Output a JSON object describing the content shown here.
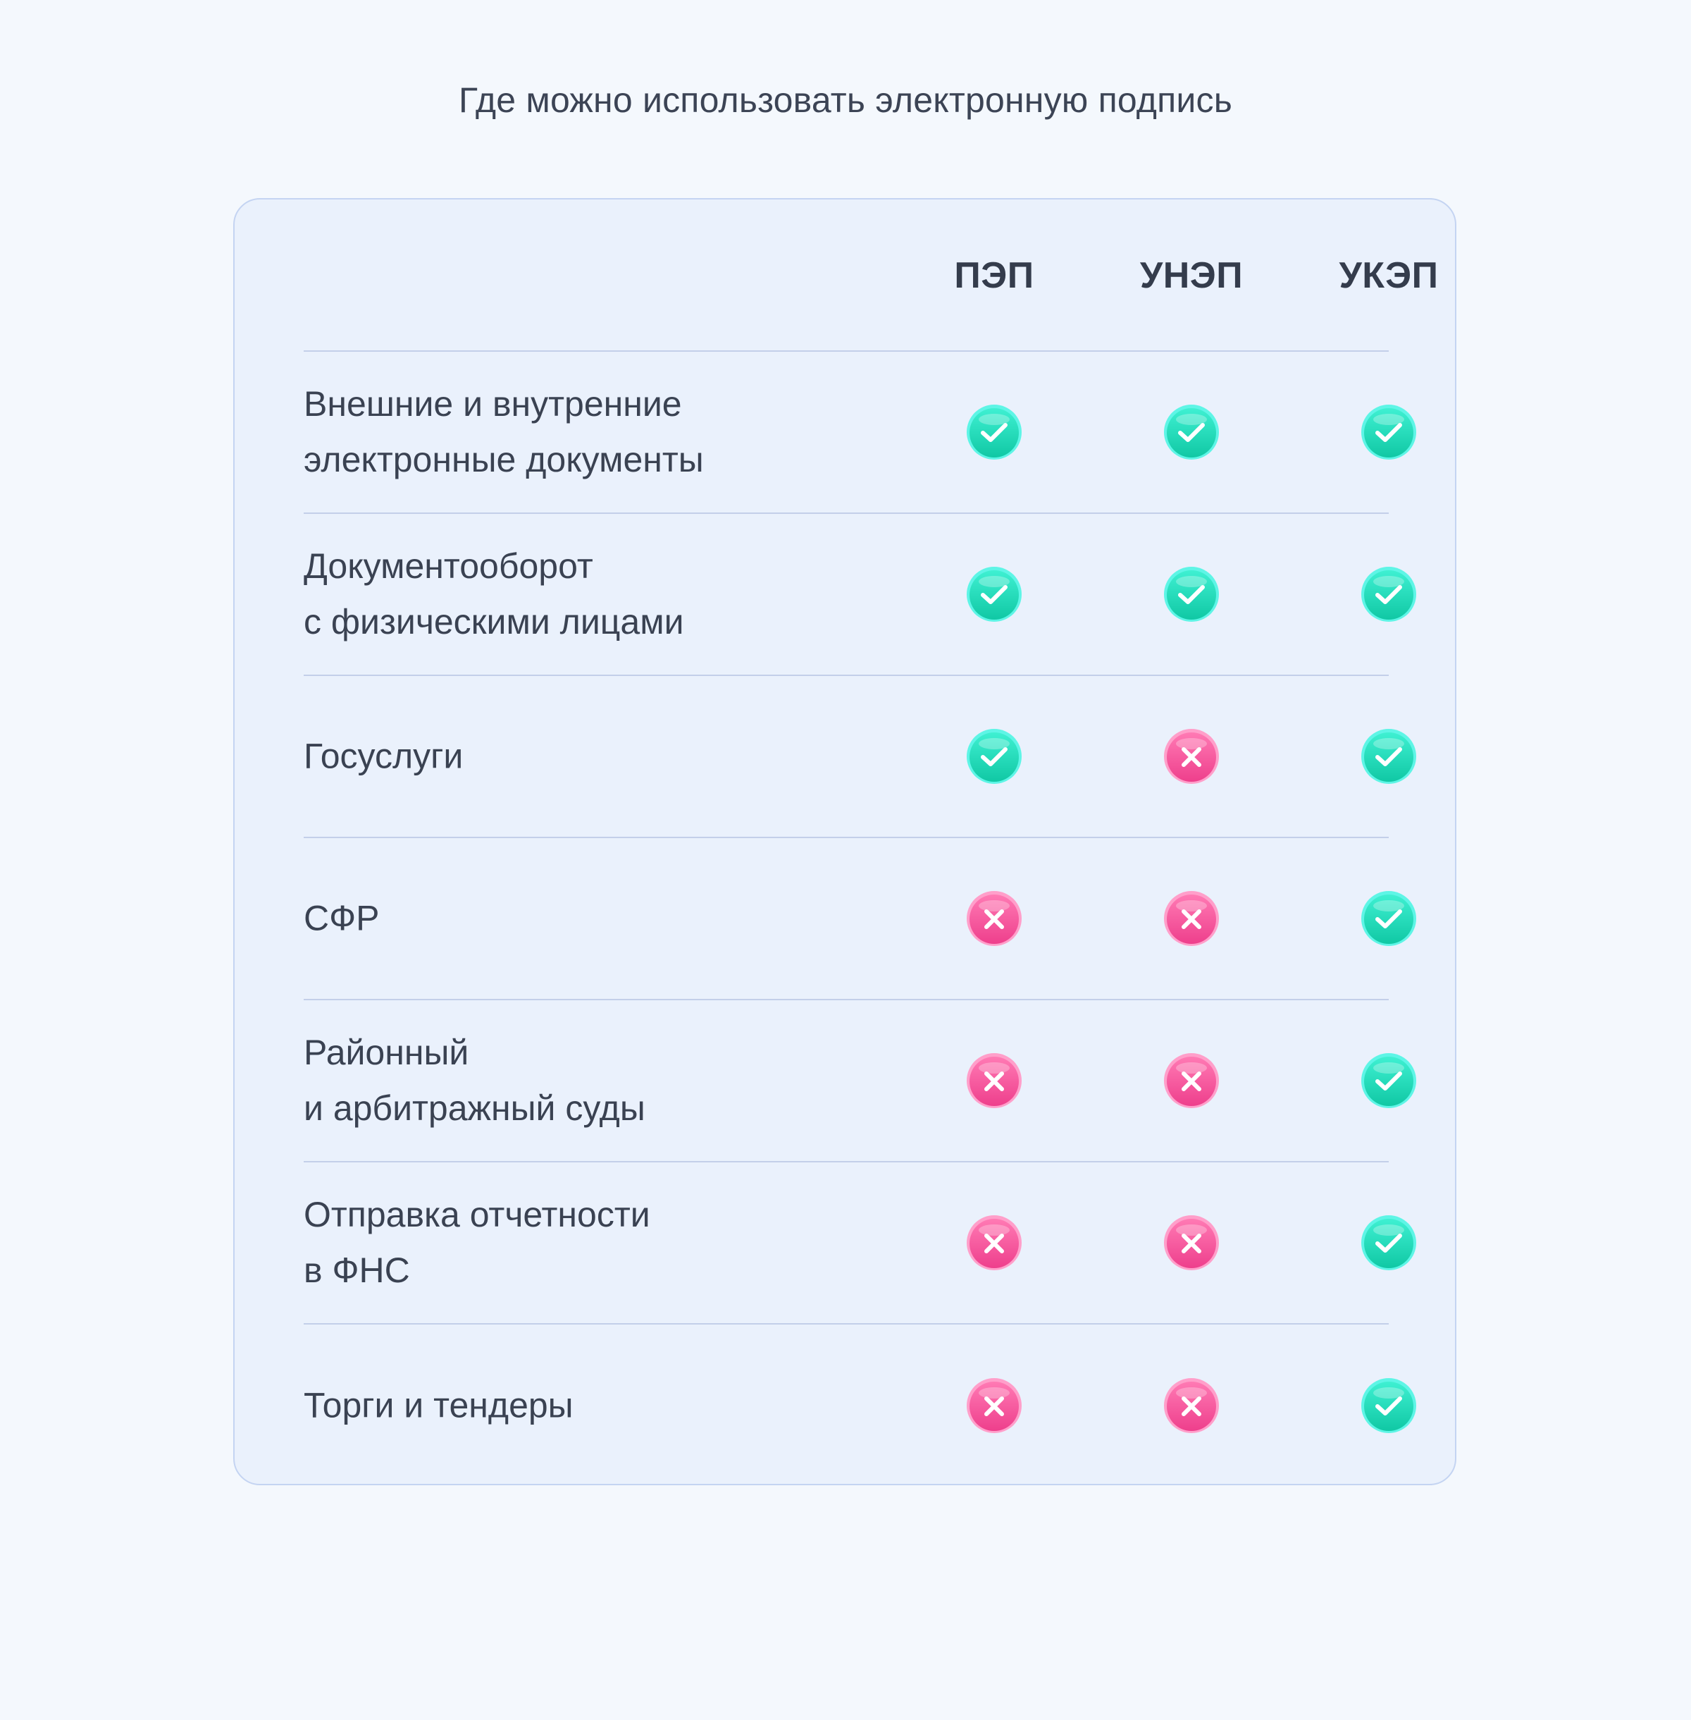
{
  "page": {
    "title": "Где можно использовать электронную подпись"
  },
  "table": {
    "columns": [
      "ПЭП",
      "УНЭП",
      "УКЭП"
    ],
    "rows": [
      {
        "label_lines": [
          "Внешние и внутренние",
          "электронные документы"
        ],
        "values": [
          "check",
          "check",
          "check"
        ]
      },
      {
        "label_lines": [
          "Документооборот",
          "с физическими лицами"
        ],
        "values": [
          "check",
          "check",
          "check"
        ]
      },
      {
        "label_lines": [
          "Госуслуги"
        ],
        "values": [
          "check",
          "cross",
          "check"
        ]
      },
      {
        "label_lines": [
          "СФР"
        ],
        "values": [
          "cross",
          "cross",
          "check"
        ]
      },
      {
        "label_lines": [
          "Районный",
          "и арбитражный суды"
        ],
        "values": [
          "cross",
          "cross",
          "check"
        ]
      },
      {
        "label_lines": [
          "Отправка отчетности",
          "в ФНС"
        ],
        "values": [
          "cross",
          "cross",
          "check"
        ]
      },
      {
        "label_lines": [
          "Торги и тендеры"
        ],
        "values": [
          "cross",
          "cross",
          "check"
        ]
      }
    ]
  },
  "icons": {
    "check": {
      "name": "check-icon",
      "color_top": "#3ff0d2",
      "color_bottom": "#10c8a4",
      "rim": "#5ef5e6"
    },
    "cross": {
      "name": "cross-icon",
      "color_top": "#ff7ab4",
      "color_bottom": "#ee3f8c",
      "rim": "#ff9fca"
    }
  }
}
